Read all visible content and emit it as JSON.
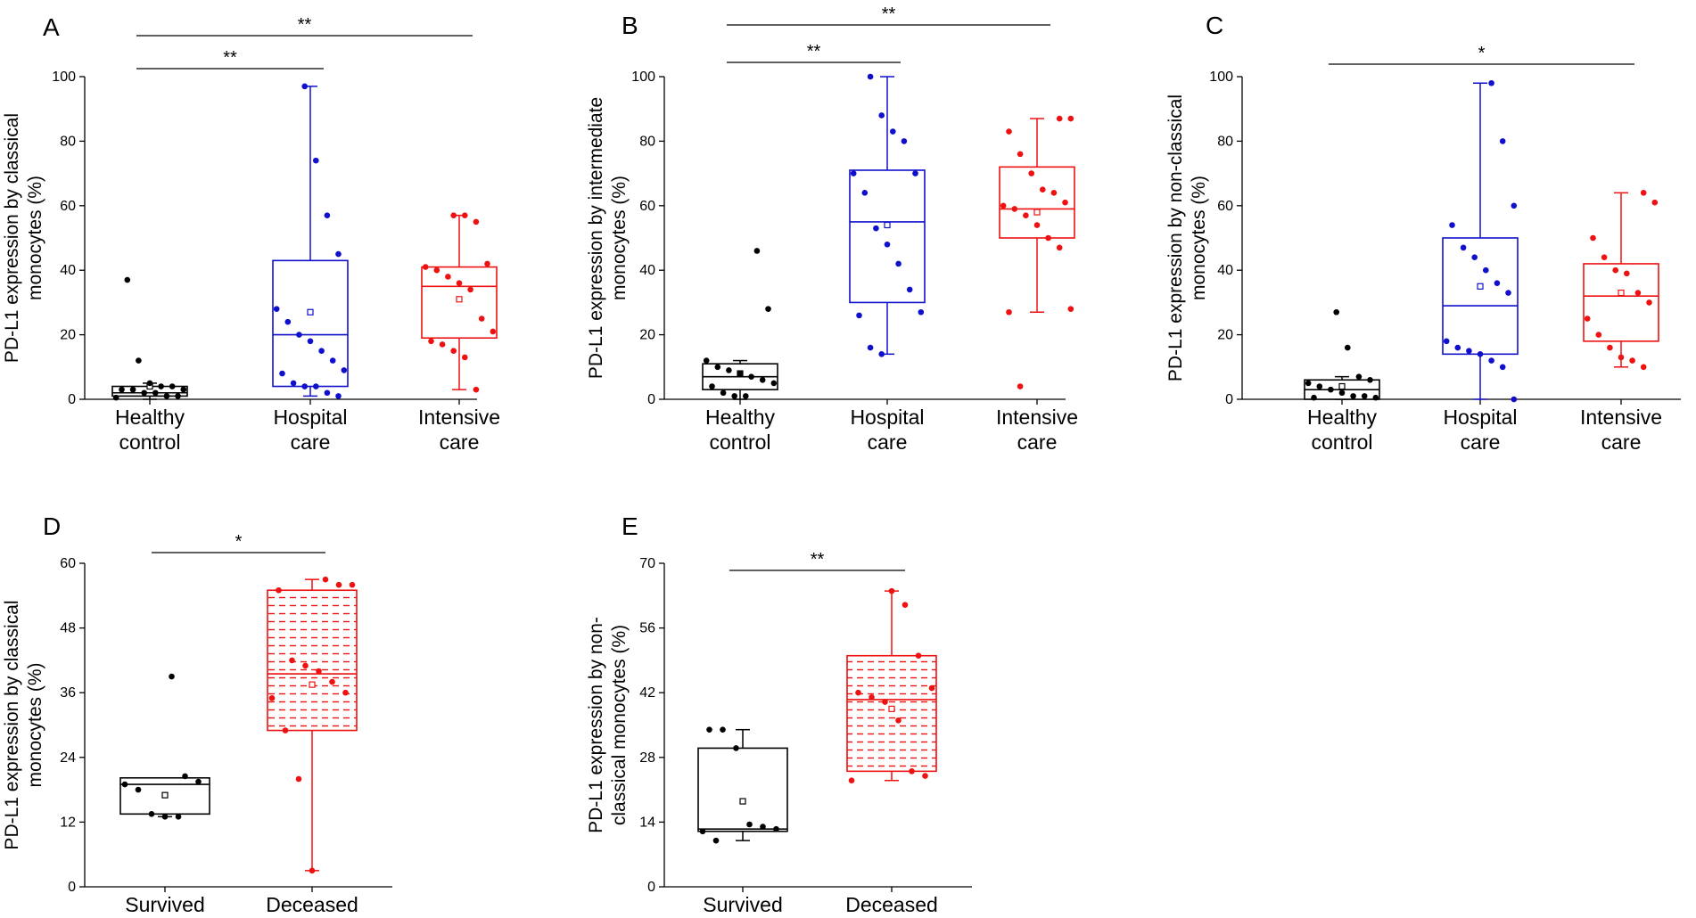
{
  "chart_data": [
    {
      "panel": "A",
      "type": "box",
      "ylabel": "PD-L1 expression by classical monocytes (%)",
      "ylabel_lines": [
        "PD-L1 expression by classical",
        "monocytes (%)"
      ],
      "ylim": [
        0,
        100
      ],
      "yticks": [
        0,
        20,
        40,
        60,
        80,
        100
      ],
      "groups": [
        {
          "label": [
            "Healthy",
            "control"
          ],
          "color": "#000000",
          "fill": "none",
          "q1": 1,
          "median": 2,
          "q3": 4,
          "wl": 0,
          "wh": 5,
          "mean": 4,
          "points": [
            0.5,
            1,
            1,
            2,
            2,
            3,
            3,
            3,
            4,
            4,
            5,
            12,
            37
          ]
        },
        {
          "label": [
            "Hospital",
            "care"
          ],
          "color": "#1010cc",
          "fill": "none",
          "q1": 4,
          "median": 20,
          "q3": 43,
          "wl": 1,
          "wh": 97,
          "mean": 27,
          "points": [
            1,
            2,
            4,
            4,
            5,
            8,
            9,
            12,
            15,
            18,
            20,
            24,
            28,
            45,
            57,
            74,
            97
          ]
        },
        {
          "label": [
            "Intensive",
            "care"
          ],
          "color": "#ee1111",
          "fill": "none",
          "q1": 19,
          "median": 35,
          "q3": 41,
          "wl": 3,
          "wh": 57,
          "mean": 31,
          "points": [
            3,
            13,
            15,
            17,
            18,
            21,
            25,
            34,
            36,
            38,
            40,
            41,
            42,
            55,
            57,
            57
          ]
        }
      ],
      "sig": [
        {
          "from": 0,
          "to": 1,
          "label": "**",
          "level": 1
        },
        {
          "from": 0,
          "to": 2,
          "label": "**",
          "level": 2
        }
      ]
    },
    {
      "panel": "B",
      "type": "box",
      "ylabel": "PD-L1 expression by intermediate monocytes (%)",
      "ylabel_lines": [
        "PD-L1 expression by intermediate",
        "monocytes (%)"
      ],
      "ylim": [
        0,
        100
      ],
      "yticks": [
        0,
        20,
        40,
        60,
        80,
        100
      ],
      "groups": [
        {
          "label": [
            "Healthy",
            "control"
          ],
          "color": "#000000",
          "fill": "none",
          "q1": 3,
          "median": 7,
          "q3": 11,
          "wl": 0,
          "wh": 12,
          "mean": 8,
          "points": [
            1,
            1,
            2,
            4,
            5,
            6,
            7,
            8,
            9,
            10,
            12,
            28,
            46
          ]
        },
        {
          "label": [
            "Hospital",
            "care"
          ],
          "color": "#1010cc",
          "fill": "none",
          "q1": 30,
          "median": 55,
          "q3": 71,
          "wl": 14,
          "wh": 100,
          "mean": 54,
          "points": [
            14,
            16,
            26,
            27,
            34,
            42,
            48,
            53,
            64,
            70,
            70,
            80,
            83,
            88,
            100
          ]
        },
        {
          "label": [
            "Intensive",
            "care"
          ],
          "color": "#ee1111",
          "fill": "none",
          "q1": 50,
          "median": 59,
          "q3": 72,
          "wl": 27,
          "wh": 87,
          "mean": 58,
          "points": [
            4,
            27,
            28,
            47,
            50,
            54,
            57,
            59,
            60,
            61,
            64,
            65,
            70,
            76,
            83,
            87,
            87
          ]
        }
      ],
      "sig": [
        {
          "from": 0,
          "to": 1,
          "label": "**",
          "level": 1
        },
        {
          "from": 0,
          "to": 2,
          "label": "**",
          "level": 2
        }
      ]
    },
    {
      "panel": "C",
      "type": "box",
      "ylabel": "PD-L1 expression by non-classical monocytes (%)",
      "ylabel_lines": [
        "PD-L1 expression by non-classical",
        "monocytes (%)"
      ],
      "ylim": [
        0,
        100
      ],
      "yticks": [
        0,
        20,
        40,
        60,
        80,
        100
      ],
      "groups": [
        {
          "label": [
            "Healthy",
            "control"
          ],
          "color": "#000000",
          "fill": "none",
          "q1": 0,
          "median": 3,
          "q3": 6,
          "wl": 0,
          "wh": 7,
          "mean": 4,
          "points": [
            0.5,
            0.5,
            1,
            1,
            2,
            3,
            4,
            5,
            6,
            7,
            16,
            27
          ]
        },
        {
          "label": [
            "Hospital",
            "care"
          ],
          "color": "#1010cc",
          "fill": "none",
          "q1": 14,
          "median": 29,
          "q3": 50,
          "wl": 0,
          "wh": 98,
          "mean": 35,
          "points": [
            0,
            10,
            12,
            14,
            15,
            16,
            18,
            33,
            36,
            40,
            44,
            47,
            54,
            60,
            80,
            98
          ]
        },
        {
          "label": [
            "Intensive",
            "care"
          ],
          "color": "#ee1111",
          "fill": "none",
          "q1": 18,
          "median": 32,
          "q3": 42,
          "wl": 10,
          "wh": 64,
          "mean": 33,
          "points": [
            10,
            12,
            13,
            16,
            20,
            25,
            30,
            33,
            39,
            40,
            44,
            50,
            61,
            64
          ]
        }
      ],
      "sig": [
        {
          "from": 0,
          "to": 2,
          "label": "*",
          "level": 1
        }
      ]
    },
    {
      "panel": "D",
      "type": "box",
      "ylabel": "PD-L1 expression by classical monocytes (%)",
      "ylabel_lines": [
        "PD-L1 expression by classical",
        "monocytes (%)"
      ],
      "ylim": [
        0,
        60
      ],
      "yticks": [
        0,
        12,
        24,
        36,
        48,
        60
      ],
      "groups": [
        {
          "label": [
            "Survived"
          ],
          "color": "#000000",
          "fill": "none",
          "q1": 13.5,
          "median": 19,
          "q3": 20.2,
          "wl": 13,
          "wh": 20.2,
          "mean": 17,
          "points": [
            13,
            13,
            13.5,
            18,
            19,
            19.5,
            20.5,
            39
          ]
        },
        {
          "label": [
            "Deceased"
          ],
          "color": "#ee1111",
          "fill": "hatch",
          "q1": 29,
          "median": 39.5,
          "q3": 55,
          "wl": 3,
          "wh": 57,
          "mean": 37.5,
          "points": [
            3,
            20,
            29,
            35,
            36,
            38,
            40,
            41,
            42,
            55,
            56,
            56,
            57
          ]
        }
      ],
      "sig": [
        {
          "from": 0,
          "to": 1,
          "label": "*",
          "level": 1
        }
      ]
    },
    {
      "panel": "E",
      "type": "box",
      "ylabel": "PD-L1 expression by non-classical monocytes (%)",
      "ylabel_lines": [
        "PD-L1 expression by non-",
        "classical monocytes (%)"
      ],
      "ylim": [
        0,
        70
      ],
      "yticks": [
        0,
        14,
        28,
        42,
        56,
        70
      ],
      "groups": [
        {
          "label": [
            "Survived"
          ],
          "color": "#000000",
          "fill": "none",
          "q1": 12,
          "median": 12.5,
          "q3": 30,
          "wl": 10,
          "wh": 34,
          "mean": 18.5,
          "points": [
            10,
            12,
            12.5,
            13,
            13.5,
            30,
            34,
            34
          ]
        },
        {
          "label": [
            "Deceased"
          ],
          "color": "#ee1111",
          "fill": "hatch",
          "q1": 25,
          "median": 40.5,
          "q3": 50,
          "wl": 23,
          "wh": 64,
          "mean": 38.5,
          "points": [
            23,
            24,
            25,
            36,
            40,
            41,
            42,
            43,
            50,
            61,
            64
          ]
        }
      ],
      "sig": [
        {
          "from": 0,
          "to": 1,
          "label": "**",
          "level": 1
        }
      ]
    }
  ]
}
